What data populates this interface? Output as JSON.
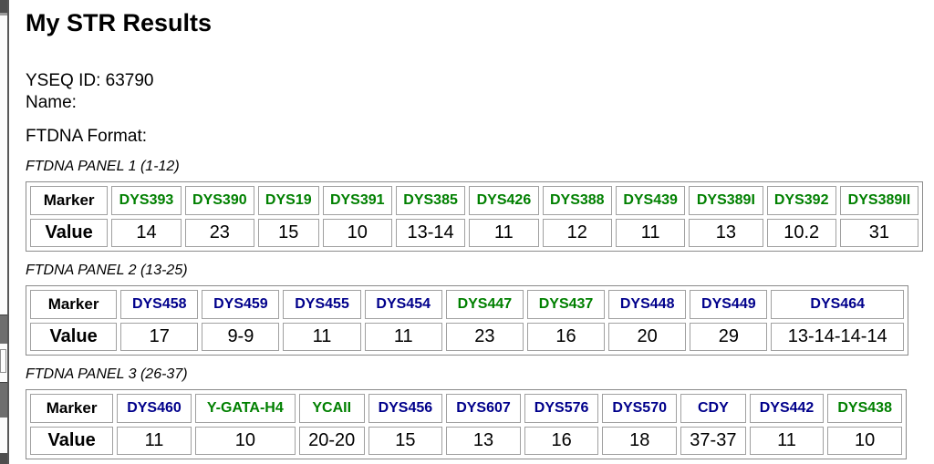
{
  "page": {
    "title": "My STR Results",
    "yseq_id": "YSEQ ID: 63790",
    "name_line": "Name:",
    "format_label": "FTDNA Format:"
  },
  "row_labels": {
    "marker": "Marker",
    "value": "Value"
  },
  "colors": {
    "marker_green": "#008000",
    "marker_blue": "#00008B",
    "cell_border": "#a0a0a0",
    "table_border": "#8a8a8a"
  },
  "panels": [
    {
      "heading": "FTDNA PANEL 1 (1-12)",
      "markers": [
        {
          "name": "DYS393",
          "color": "#008000",
          "value": "14"
        },
        {
          "name": "DYS390",
          "color": "#008000",
          "value": "23"
        },
        {
          "name": "DYS19",
          "color": "#008000",
          "value": "15"
        },
        {
          "name": "DYS391",
          "color": "#008000",
          "value": "10"
        },
        {
          "name": "DYS385",
          "color": "#008000",
          "value": "13-14"
        },
        {
          "name": "DYS426",
          "color": "#008000",
          "value": "11"
        },
        {
          "name": "DYS388",
          "color": "#008000",
          "value": "12"
        },
        {
          "name": "DYS439",
          "color": "#008000",
          "value": "11"
        },
        {
          "name": "DYS389I",
          "color": "#008000",
          "value": "13"
        },
        {
          "name": "DYS392",
          "color": "#008000",
          "value": "10.2"
        },
        {
          "name": "DYS389II",
          "color": "#008000",
          "value": "31"
        }
      ]
    },
    {
      "heading": "FTDNA PANEL 2 (13-25)",
      "markers": [
        {
          "name": "DYS458",
          "color": "#00008B",
          "value": "17"
        },
        {
          "name": "DYS459",
          "color": "#00008B",
          "value": "9-9"
        },
        {
          "name": "DYS455",
          "color": "#00008B",
          "value": "11"
        },
        {
          "name": "DYS454",
          "color": "#00008B",
          "value": "11"
        },
        {
          "name": "DYS447",
          "color": "#008000",
          "value": "23"
        },
        {
          "name": "DYS437",
          "color": "#008000",
          "value": "16"
        },
        {
          "name": "DYS448",
          "color": "#00008B",
          "value": "20"
        },
        {
          "name": "DYS449",
          "color": "#00008B",
          "value": "29"
        },
        {
          "name": "DYS464",
          "color": "#00008B",
          "value": "13-14-14-14"
        }
      ]
    },
    {
      "heading": "FTDNA PANEL 3 (26-37)",
      "markers": [
        {
          "name": "DYS460",
          "color": "#00008B",
          "value": "11"
        },
        {
          "name": "Y-GATA-H4",
          "color": "#008000",
          "value": "10"
        },
        {
          "name": "YCAII",
          "color": "#008000",
          "value": "20-20"
        },
        {
          "name": "DYS456",
          "color": "#00008B",
          "value": "15"
        },
        {
          "name": "DYS607",
          "color": "#00008B",
          "value": "13"
        },
        {
          "name": "DYS576",
          "color": "#00008B",
          "value": "16"
        },
        {
          "name": "DYS570",
          "color": "#00008B",
          "value": "18"
        },
        {
          "name": "CDY",
          "color": "#00008B",
          "value": "37-37"
        },
        {
          "name": "DYS442",
          "color": "#00008B",
          "value": "11"
        },
        {
          "name": "DYS438",
          "color": "#008000",
          "value": "10"
        }
      ]
    }
  ]
}
